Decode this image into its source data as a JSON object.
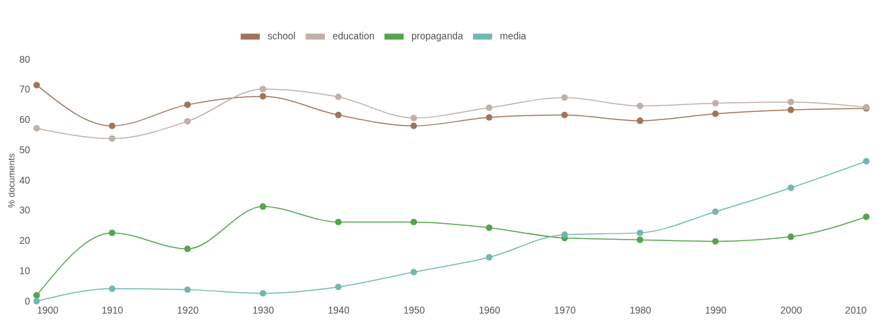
{
  "chart_data": {
    "type": "line",
    "ylabel": "% documents",
    "x": [
      1900,
      1910,
      1920,
      1930,
      1940,
      1950,
      1960,
      1970,
      1980,
      1990,
      2000,
      2010
    ],
    "series": [
      {
        "name": "school",
        "color": "#a0755a",
        "values": [
          71.5,
          58,
          65,
          67.8,
          61.6,
          58,
          60.8,
          61.6,
          59.7,
          62,
          63.3,
          63.8
        ]
      },
      {
        "name": "education",
        "color": "#c0b0a8",
        "values": [
          57.2,
          53.8,
          59.5,
          70.2,
          67.6,
          60.6,
          64,
          67.4,
          64.6,
          65.5,
          65.9,
          64.2
        ]
      },
      {
        "name": "propaganda",
        "color": "#56a350",
        "values": [
          1.9,
          22.6,
          17.3,
          31.3,
          26.2,
          26.2,
          24.3,
          20.9,
          20.3,
          19.8,
          21.3,
          27.9
        ]
      },
      {
        "name": "media",
        "color": "#72b8b0",
        "values": [
          0,
          4.1,
          3.8,
          2.6,
          4.7,
          9.6,
          14.5,
          22,
          22.6,
          29.6,
          37.5,
          46.3
        ]
      }
    ],
    "xlim": [
      1900,
      2010
    ],
    "xticks": [
      1900,
      1910,
      1920,
      1930,
      1940,
      1950,
      1960,
      1970,
      1980,
      1990,
      2000,
      2010
    ],
    "ylim": [
      0,
      80
    ],
    "yticks": [
      0,
      10,
      20,
      30,
      40,
      50,
      60,
      70,
      80
    ],
    "grid": false,
    "legend": "top",
    "marker": "circle",
    "line_style": "solid"
  }
}
